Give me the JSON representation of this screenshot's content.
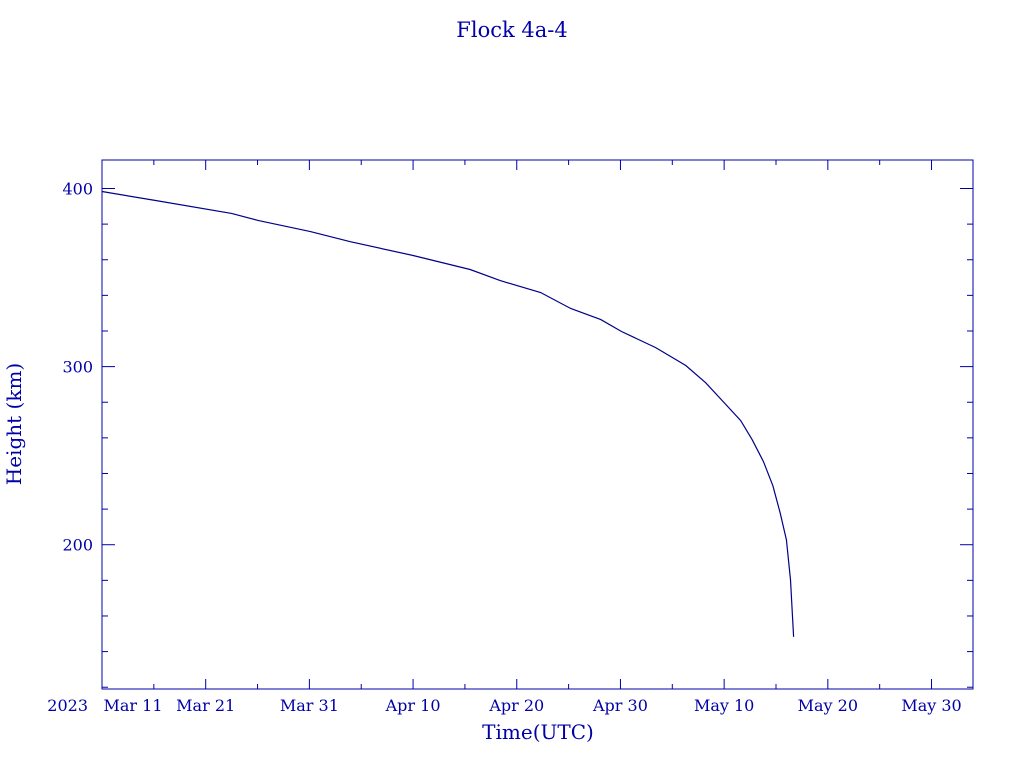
{
  "chart_data": {
    "type": "line",
    "title": "Flock 4a-4",
    "xlabel": "Time(UTC)",
    "ylabel": "Height (km)",
    "x_year_label": "2023",
    "xlim": [
      "2023-03-11T00:00",
      "2023-06-03T00:00"
    ],
    "ylim": [
      119,
      416
    ],
    "x_ticks": [
      {
        "date": "2023-03-11",
        "label": "Mar 11"
      },
      {
        "date": "2023-03-21",
        "label": "Mar 21"
      },
      {
        "date": "2023-03-31",
        "label": "Mar 31"
      },
      {
        "date": "2023-04-10",
        "label": "Apr 10"
      },
      {
        "date": "2023-04-20",
        "label": "Apr 20"
      },
      {
        "date": "2023-04-30",
        "label": "Apr 30"
      },
      {
        "date": "2023-05-10",
        "label": "May 10"
      },
      {
        "date": "2023-05-20",
        "label": "May 20"
      },
      {
        "date": "2023-05-30",
        "label": "May 30"
      }
    ],
    "x_minor_tick_days": 5,
    "y_ticks": [
      200,
      300,
      400
    ],
    "y_minor_tick_km": 20,
    "grid": false,
    "colors": {
      "line": "#00008b",
      "axes": "#0000a8"
    },
    "series": [
      {
        "x": [
          "2023-03-11T00:00",
          "2023-03-16T02:24",
          "2023-03-23T12:00",
          "2023-03-26T02:24",
          "2023-03-31T02:24",
          "2023-04-03T21:36",
          "2023-04-10T00:00",
          "2023-04-15T12:00",
          "2023-04-18T09:36",
          "2023-04-22T07:12",
          "2023-04-25T04:48",
          "2023-04-28T02:24",
          "2023-04-30T02:24",
          "2023-05-03T09:36",
          "2023-05-06T07:12",
          "2023-05-08T04:48",
          "2023-05-10T00:00",
          "2023-05-11T14:24",
          "2023-05-12T16:48",
          "2023-05-13T19:12",
          "2023-05-14T16:48",
          "2023-05-15T09:36",
          "2023-05-16T00:00",
          "2023-05-16T09:36",
          "2023-05-16T16:48"
        ],
        "y": [
          398.3,
          393.3,
          386.0,
          382.0,
          375.8,
          370.2,
          362.4,
          354.5,
          348.3,
          341.6,
          332.6,
          326.4,
          319.7,
          310.7,
          300.6,
          291.0,
          279.8,
          269.7,
          259.0,
          246.6,
          233.1,
          218.0,
          202.8,
          180.3,
          148.3
        ]
      }
    ]
  }
}
